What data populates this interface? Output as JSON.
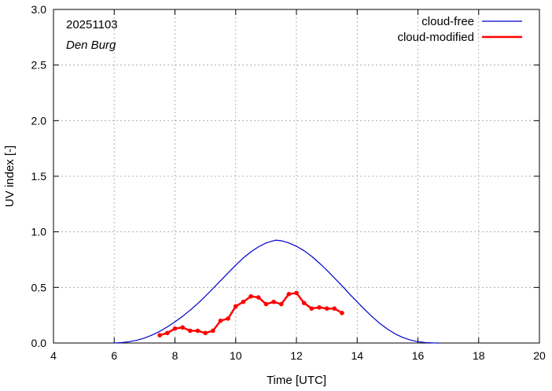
{
  "chart_data": {
    "type": "line",
    "xlabel": "Time  [UTC]",
    "ylabel": "UV index  [-]",
    "xlim": [
      4,
      20
    ],
    "ylim": [
      0,
      3
    ],
    "xticks": [
      4,
      6,
      8,
      10,
      12,
      14,
      16,
      18,
      20
    ],
    "xtick_labels": [
      "4",
      "6",
      "8",
      "10",
      "12",
      "14",
      "16",
      "18",
      "20"
    ],
    "yticks": [
      0,
      0.5,
      1,
      1.5,
      2,
      2.5,
      3
    ],
    "ytick_labels": [
      "0.0",
      "0.5",
      "1.0",
      "1.5",
      "2.0",
      "2.5",
      "3.0"
    ],
    "annotations": [
      "20251103",
      "Den Burg"
    ],
    "legend_position": "top-right",
    "series": [
      {
        "name": "cloud-free",
        "color": "#0000cc",
        "style": "line",
        "x": [
          6.0,
          6.25,
          6.5,
          6.75,
          7.0,
          7.25,
          7.5,
          7.75,
          8.0,
          8.25,
          8.5,
          8.75,
          9.0,
          9.25,
          9.5,
          9.75,
          10.0,
          10.25,
          10.5,
          10.75,
          11.0,
          11.25,
          11.33,
          11.5,
          11.75,
          12.0,
          12.25,
          12.5,
          12.75,
          13.0,
          13.25,
          13.5,
          13.75,
          14.0,
          14.25,
          14.5,
          14.75,
          15.0,
          15.25,
          15.5,
          15.75,
          16.0,
          16.25,
          16.5,
          16.7
        ],
        "values": [
          0.0,
          0.004,
          0.012,
          0.025,
          0.045,
          0.072,
          0.105,
          0.145,
          0.19,
          0.24,
          0.295,
          0.355,
          0.42,
          0.49,
          0.56,
          0.63,
          0.7,
          0.765,
          0.82,
          0.865,
          0.9,
          0.92,
          0.925,
          0.92,
          0.9,
          0.87,
          0.83,
          0.78,
          0.72,
          0.655,
          0.585,
          0.515,
          0.44,
          0.37,
          0.3,
          0.235,
          0.175,
          0.125,
          0.082,
          0.05,
          0.027,
          0.012,
          0.004,
          0.001,
          0.0
        ]
      },
      {
        "name": "cloud-modified",
        "color": "#ff0000",
        "style": "linespoints",
        "x": [
          7.5,
          7.75,
          8.0,
          8.25,
          8.5,
          8.75,
          9.0,
          9.25,
          9.5,
          9.75,
          10.0,
          10.25,
          10.5,
          10.75,
          11.0,
          11.25,
          11.5,
          11.75,
          12.0,
          12.25,
          12.5,
          12.75,
          13.0,
          13.25,
          13.5
        ],
        "values": [
          0.07,
          0.09,
          0.13,
          0.14,
          0.11,
          0.11,
          0.09,
          0.11,
          0.2,
          0.22,
          0.33,
          0.37,
          0.42,
          0.41,
          0.35,
          0.37,
          0.35,
          0.44,
          0.45,
          0.36,
          0.31,
          0.32,
          0.31,
          0.31,
          0.27
        ]
      }
    ]
  }
}
